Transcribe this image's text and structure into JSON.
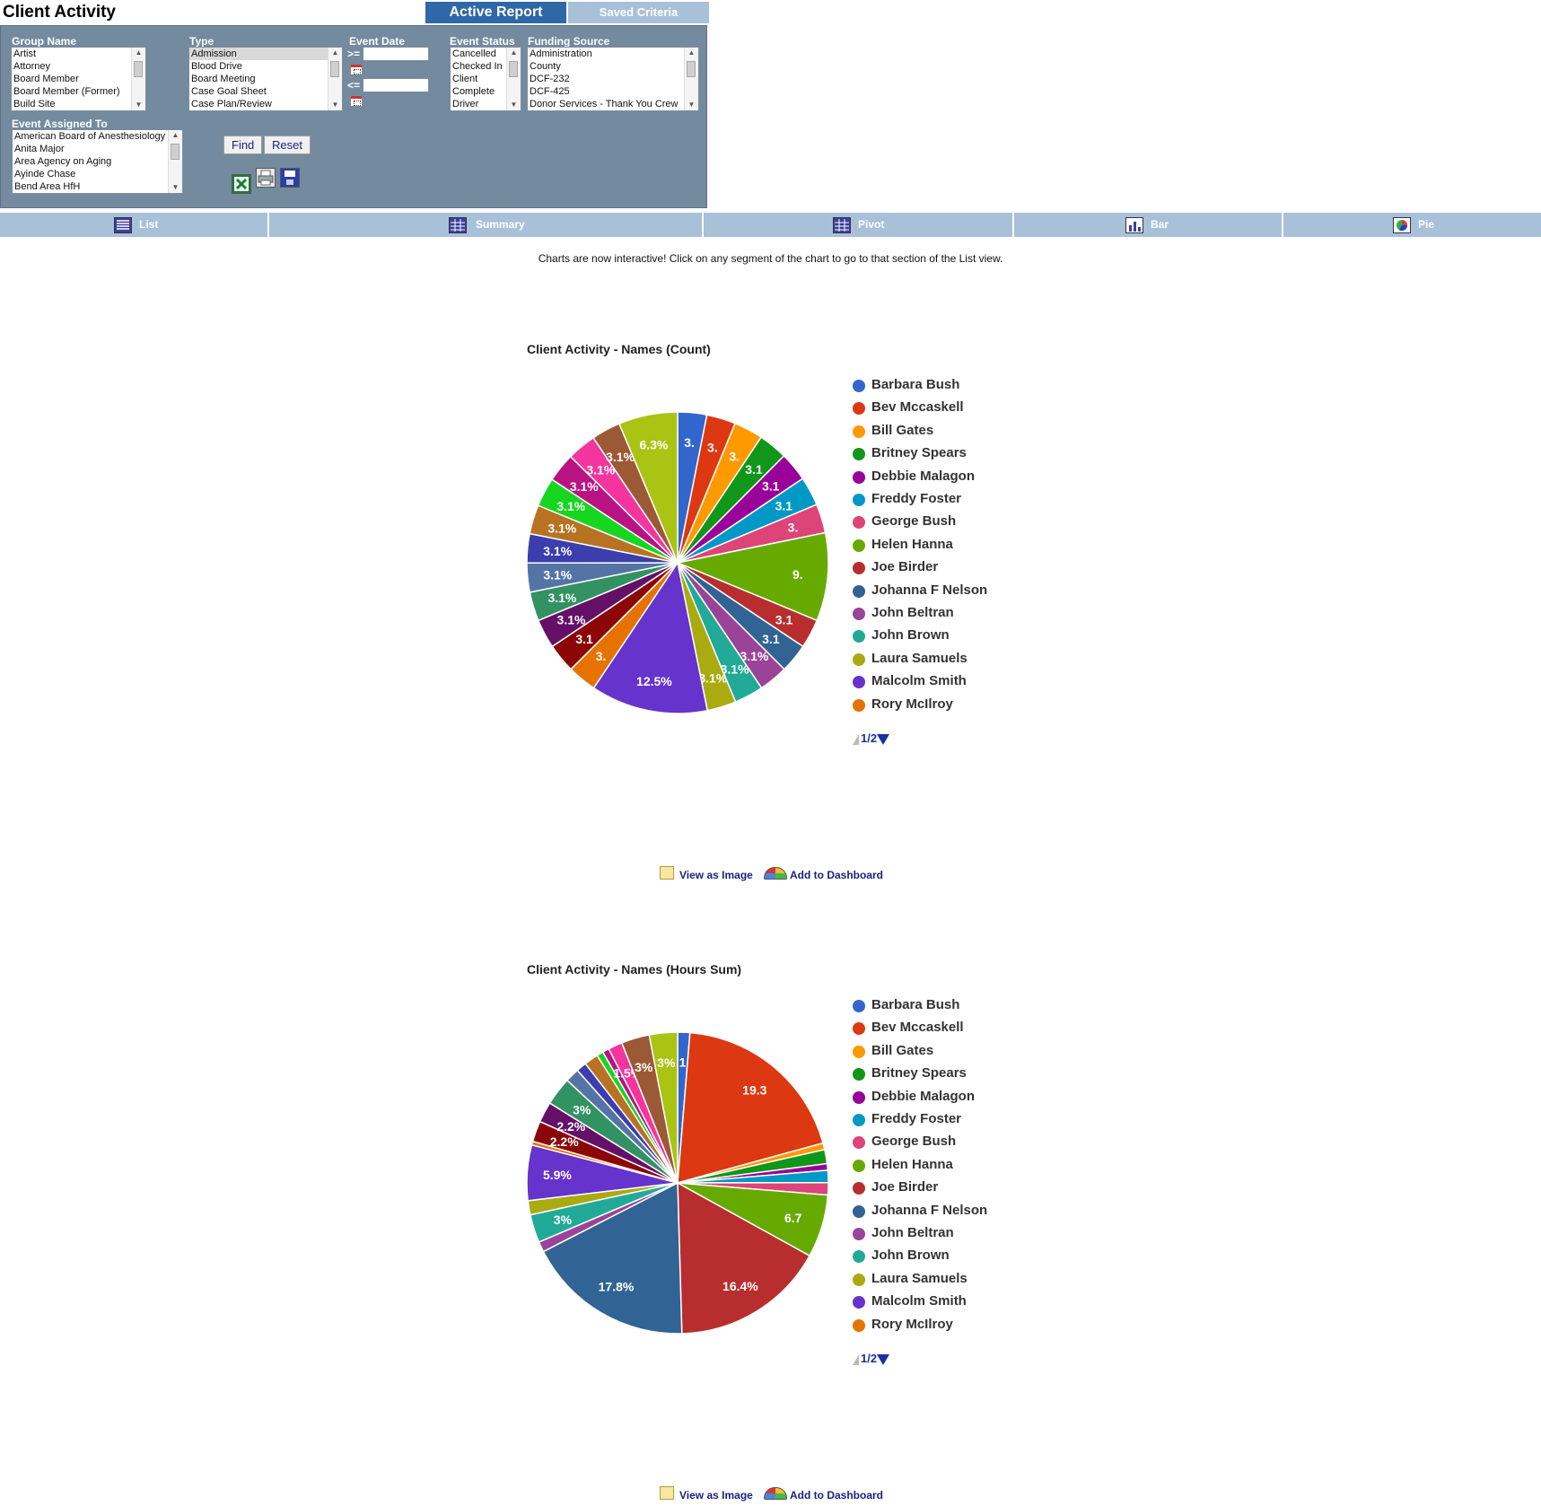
{
  "page": {
    "title": "Client Activity"
  },
  "top_tabs": {
    "active_report": "Active Report",
    "saved_criteria": "Saved Criteria"
  },
  "filters": {
    "group_name": {
      "label": "Group Name",
      "options": [
        "Artist",
        "Attorney",
        "Board Member",
        "Board Member (Former)",
        "Build Site"
      ]
    },
    "type": {
      "label": "Type",
      "options": [
        "Admission",
        "Blood Drive",
        "Board Meeting",
        "Case Goal Sheet",
        "Case Plan/Review"
      ],
      "selected": "Admission"
    },
    "event_date": {
      "label": "Event Date",
      "from_op": ">=",
      "to_op": "<="
    },
    "event_status": {
      "label": "Event Status",
      "options": [
        "Cancelled",
        "Checked In",
        "Client",
        "Complete",
        "Driver"
      ]
    },
    "funding_source": {
      "label": "Funding Source",
      "options": [
        "Administration",
        "County",
        "DCF-232",
        "DCF-425",
        "Donor Services - Thank You Crew"
      ]
    },
    "event_assigned_to": {
      "label": "Event Assigned To",
      "options": [
        "American Board of Anesthesiology",
        "Anita Major",
        "Area Agency on Aging",
        "Ayinde Chase",
        "Bend Area HfH"
      ]
    },
    "find_label": "Find",
    "reset_label": "Reset",
    "icons": [
      "excel-export-icon",
      "print-icon",
      "save-icon"
    ]
  },
  "view_tabs": [
    {
      "label": "List",
      "icon": "list-icon"
    },
    {
      "label": "Summary",
      "icon": "summary-table-icon"
    },
    {
      "label": "Pivot",
      "icon": "pivot-table-icon"
    },
    {
      "label": "Bar",
      "icon": "bar-chart-icon"
    },
    {
      "label": "Pie",
      "icon": "pie-chart-icon"
    }
  ],
  "notice": "Charts are now interactive! Click on any segment of the chart to go to that section of the List view.",
  "legend": {
    "names": [
      "Barbara Bush",
      "Bev Mccaskell",
      "Bill Gates",
      "Britney Spears",
      "Debbie Malagon",
      "Freddy Foster",
      "George Bush",
      "Helen Hanna",
      "Joe Birder",
      "Johanna F Nelson",
      "John Beltran",
      "John Brown",
      "Laura Samuels",
      "Malcolm Smith",
      "Rory McIlroy"
    ],
    "colors": [
      "#3366cc",
      "#dc3912",
      "#ff9900",
      "#109618",
      "#990099",
      "#0099c6",
      "#dd4477",
      "#66aa00",
      "#b82e2e",
      "#316395",
      "#994499",
      "#22aa99",
      "#aaaa11",
      "#6633cc",
      "#e67300"
    ],
    "pager": "1/2"
  },
  "links": {
    "view_as_image": "View as Image",
    "add_to_dashboard": "Add to Dashboard"
  },
  "chart_data": [
    {
      "type": "pie",
      "title": "Client Activity - Names (Count)",
      "colors": [
        "#3366cc",
        "#dc3912",
        "#ff9900",
        "#109618",
        "#990099",
        "#0099c6",
        "#dd4477",
        "#66aa00",
        "#b82e2e",
        "#316395",
        "#994499",
        "#22aa99",
        "#aaaa11",
        "#6633cc",
        "#e67300",
        "#8b0707",
        "#651067",
        "#329262",
        "#5574a6",
        "#3b3eac",
        "#b77322",
        "#16d620",
        "#b91383",
        "#f4359e",
        "#9c5935",
        "#a9c413"
      ],
      "values": [
        3.1,
        3.1,
        3.1,
        3.1,
        3.1,
        3.1,
        3.1,
        9.4,
        3.1,
        3.1,
        3.1,
        3.1,
        3.1,
        12.5,
        3.1,
        3.1,
        3.1,
        3.1,
        3.1,
        3.1,
        3.1,
        3.1,
        3.1,
        3.1,
        3.1,
        6.3
      ],
      "labels": [
        "3.",
        "3.",
        "3.",
        "3.1",
        "3.1",
        "3.1",
        "3.",
        "9.",
        "3.1",
        "3.1",
        "3.1%",
        "3.1%",
        "3.1%",
        "12.5%",
        "3.",
        "3.1",
        "3.1%",
        "3.1%",
        "3.1%",
        "3.1%",
        "3.1%",
        "3.1%",
        "3.1%",
        "3.1%",
        "3.1%",
        "6.3%"
      ]
    },
    {
      "type": "pie",
      "title": "Client Activity - Names (Hours Sum)",
      "colors": [
        "#3366cc",
        "#dc3912",
        "#ff9900",
        "#109618",
        "#990099",
        "#0099c6",
        "#dd4477",
        "#66aa00",
        "#b82e2e",
        "#316395",
        "#994499",
        "#22aa99",
        "#aaaa11",
        "#6633cc",
        "#e67300",
        "#8b0707",
        "#651067",
        "#329262",
        "#5574a6",
        "#3b3eac",
        "#b77322",
        "#16d620",
        "#b91383",
        "#f4359e",
        "#9c5935",
        "#a9c413"
      ],
      "values": [
        1.3,
        19.3,
        0.7,
        1.5,
        0.7,
        1.3,
        1.3,
        6.7,
        16.4,
        17.8,
        1.1,
        3,
        1.5,
        5.9,
        0.4,
        2.2,
        2.2,
        3,
        1.5,
        1.1,
        1.5,
        0.7,
        0.7,
        1.5,
        3,
        3
      ],
      "labels": [
        "1",
        "19.3",
        "",
        "",
        "",
        "",
        "",
        "6.7",
        "16.4%",
        "17.8%",
        "",
        "3%",
        "",
        "5.9%",
        "",
        "2.2%",
        "2.2%",
        "3%",
        "",
        "",
        "",
        "",
        "",
        "1.5%",
        "3%",
        "3%"
      ]
    }
  ]
}
